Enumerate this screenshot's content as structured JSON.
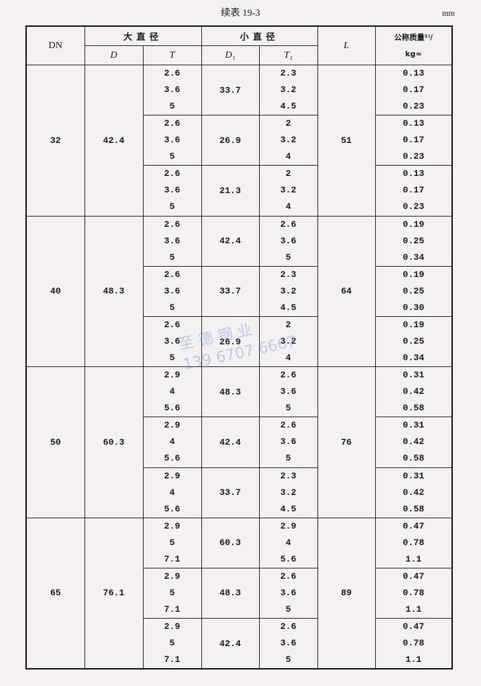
{
  "caption": "续表 19-3",
  "unit": "mm",
  "headers": {
    "dn": "DN",
    "large_diameter": "大直径",
    "small_diameter": "小直径",
    "D": "D",
    "T": "T",
    "D1": "D₁",
    "T1": "T₁",
    "L": "L",
    "mass_line1": "公称质量¹⁾/",
    "mass_line2": "kg≈"
  },
  "watermark": {
    "line1": "至 德 钢 业",
    "line2": "139 6707 6667"
  },
  "groups": [
    {
      "DN": "32",
      "D": "42.4",
      "L": "51",
      "subgroups": [
        {
          "T": [
            "2.6",
            "3.6",
            "5"
          ],
          "D1": "33.7",
          "T1": [
            "2.3",
            "3.2",
            "4.5"
          ],
          "mass": [
            "0.13",
            "0.17",
            "0.23"
          ]
        },
        {
          "T": [
            "2.6",
            "3.6",
            "5"
          ],
          "D1": "26.9",
          "T1": [
            "2",
            "3.2",
            "4"
          ],
          "mass": [
            "0.13",
            "0.17",
            "0.23"
          ]
        },
        {
          "T": [
            "2.6",
            "3.6",
            "5"
          ],
          "D1": "21.3",
          "T1": [
            "2",
            "3.2",
            "4"
          ],
          "mass": [
            "0.13",
            "0.17",
            "0.23"
          ]
        }
      ]
    },
    {
      "DN": "40",
      "D": "48.3",
      "L": "64",
      "subgroups": [
        {
          "T": [
            "2.6",
            "3.6",
            "5"
          ],
          "D1": "42.4",
          "T1": [
            "2.6",
            "3.6",
            "5"
          ],
          "mass": [
            "0.19",
            "0.25",
            "0.34"
          ]
        },
        {
          "T": [
            "2.6",
            "3.6",
            "5"
          ],
          "D1": "33.7",
          "T1": [
            "2.3",
            "3.2",
            "4.5"
          ],
          "mass": [
            "0.19",
            "0.25",
            "0.30"
          ]
        },
        {
          "T": [
            "2.6",
            "3.6",
            "5"
          ],
          "D1": "26.9",
          "T1": [
            "2",
            "3.2",
            "4"
          ],
          "mass": [
            "0.19",
            "0.25",
            "0.34"
          ]
        }
      ]
    },
    {
      "DN": "50",
      "D": "60.3",
      "L": "76",
      "subgroups": [
        {
          "T": [
            "2.9",
            "4",
            "5.6"
          ],
          "D1": "48.3",
          "T1": [
            "2.6",
            "3.6",
            "5"
          ],
          "mass": [
            "0.31",
            "0.42",
            "0.58"
          ]
        },
        {
          "T": [
            "2.9",
            "4",
            "5.6"
          ],
          "D1": "42.4",
          "T1": [
            "2.6",
            "3.6",
            "5"
          ],
          "mass": [
            "0.31",
            "0.42",
            "0.58"
          ]
        },
        {
          "T": [
            "2.9",
            "4",
            "5.6"
          ],
          "D1": "33.7",
          "T1": [
            "2.3",
            "3.2",
            "4.5"
          ],
          "mass": [
            "0.31",
            "0.42",
            "0.58"
          ]
        }
      ]
    },
    {
      "DN": "65",
      "D": "76.1",
      "L": "89",
      "subgroups": [
        {
          "T": [
            "2.9",
            "5",
            "7.1"
          ],
          "D1": "60.3",
          "T1": [
            "2.9",
            "4",
            "5.6"
          ],
          "mass": [
            "0.47",
            "0.78",
            "1.1"
          ]
        },
        {
          "T": [
            "2.9",
            "5",
            "7.1"
          ],
          "D1": "48.3",
          "T1": [
            "2.6",
            "3.6",
            "5"
          ],
          "mass": [
            "0.47",
            "0.78",
            "1.1"
          ]
        },
        {
          "T": [
            "2.9",
            "5",
            "7.1"
          ],
          "D1": "42.4",
          "T1": [
            "2.6",
            "3.6",
            "5"
          ],
          "mass": [
            "0.47",
            "0.78",
            "1.1"
          ]
        }
      ]
    }
  ]
}
